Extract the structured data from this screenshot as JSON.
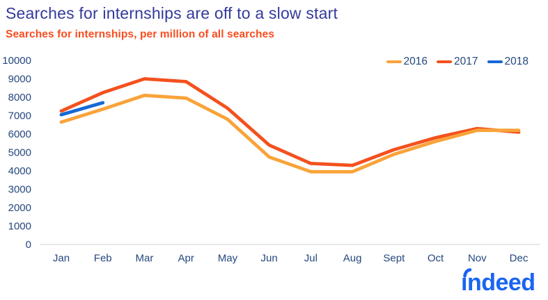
{
  "chart_data": {
    "type": "line",
    "title": "Searches for internships are off to a slow start",
    "subtitle": "Searches for internships, per million of all searches",
    "categories": [
      "Jan",
      "Feb",
      "Mar",
      "Apr",
      "May",
      "Jun",
      "Jul",
      "Aug",
      "Sept",
      "Oct",
      "Nov",
      "Dec"
    ],
    "series": [
      {
        "name": "2016",
        "color": "#f9a33a",
        "z": 1,
        "values": [
          6650,
          7350,
          8100,
          7950,
          6800,
          4750,
          3950,
          3950,
          4900,
          5600,
          6200,
          6200
        ]
      },
      {
        "name": "2017",
        "color": "#f4511e",
        "z": 0,
        "values": [
          7250,
          8250,
          9000,
          8850,
          7400,
          5400,
          4400,
          4300,
          5150,
          5800,
          6300,
          6100
        ]
      },
      {
        "name": "2018",
        "color": "#1569d3",
        "z": 2,
        "values": [
          7050,
          7700
        ]
      }
    ],
    "xlabel": "",
    "ylabel": "",
    "ylim": [
      0,
      10000
    ],
    "yticks": [
      0,
      1000,
      2000,
      3000,
      4000,
      5000,
      6000,
      7000,
      8000,
      9000,
      10000
    ],
    "grid": false,
    "legend_position": "top-right",
    "colors": {
      "title": "#333a9c",
      "subtitle": "#fa4d20",
      "axis_text": "#24477d",
      "axis_line": "#d9d9d9",
      "legend_text": "#24477d"
    }
  },
  "logo": {
    "text": "indeed",
    "color": "#1a64f2"
  }
}
